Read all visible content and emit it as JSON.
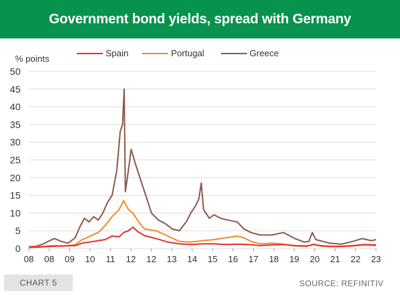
{
  "header": {
    "title": "Government bond yields, spread with Germany"
  },
  "footer": {
    "chart_tag": "CHART 5",
    "source": "SOURCE: REFINITIV"
  },
  "colors": {
    "spain": "#e03131",
    "portugal": "#f08c28",
    "greece": "#8b5a4a",
    "header_bg": "#07924f",
    "grid": "#dcdcdc"
  },
  "chart_data": {
    "type": "line",
    "title": "Government bond yields, spread with Germany",
    "ylabel": "% points",
    "xlabel": "",
    "ylim": [
      0,
      50
    ],
    "yticks": [
      0,
      5,
      10,
      15,
      20,
      25,
      30,
      35,
      40,
      45,
      50
    ],
    "xlim": [
      2008.0,
      2023.0
    ],
    "xtick_labels": [
      "08",
      "08",
      "09",
      "10",
      "11",
      "12",
      "12",
      "13",
      "14",
      "15",
      "16",
      "17",
      "18",
      "19",
      "20",
      "21",
      "22",
      "23"
    ],
    "legend_position": "top",
    "grid": true,
    "series": [
      {
        "name": "Spain",
        "color": "#e03131",
        "points": [
          [
            2008.0,
            0.3
          ],
          [
            2008.5,
            0.4
          ],
          [
            2009.0,
            0.6
          ],
          [
            2009.5,
            0.7
          ],
          [
            2010.0,
            0.8
          ],
          [
            2010.3,
            1.5
          ],
          [
            2010.5,
            1.7
          ],
          [
            2010.8,
            2.0
          ],
          [
            2011.0,
            2.2
          ],
          [
            2011.3,
            2.5
          ],
          [
            2011.6,
            3.5
          ],
          [
            2011.9,
            3.3
          ],
          [
            2012.1,
            4.5
          ],
          [
            2012.3,
            5.0
          ],
          [
            2012.5,
            6.0
          ],
          [
            2012.7,
            4.8
          ],
          [
            2013.0,
            3.6
          ],
          [
            2013.5,
            2.8
          ],
          [
            2014.0,
            1.8
          ],
          [
            2014.5,
            1.3
          ],
          [
            2015.0,
            1.1
          ],
          [
            2015.5,
            1.3
          ],
          [
            2016.0,
            1.3
          ],
          [
            2016.5,
            1.1
          ],
          [
            2017.0,
            1.2
          ],
          [
            2017.5,
            1.1
          ],
          [
            2018.0,
            0.8
          ],
          [
            2018.5,
            1.0
          ],
          [
            2019.0,
            1.1
          ],
          [
            2019.5,
            0.8
          ],
          [
            2020.0,
            0.7
          ],
          [
            2020.3,
            1.1
          ],
          [
            2020.6,
            0.8
          ],
          [
            2021.0,
            0.6
          ],
          [
            2021.5,
            0.6
          ],
          [
            2022.0,
            0.8
          ],
          [
            2022.5,
            1.1
          ],
          [
            2023.0,
            1.0
          ]
        ]
      },
      {
        "name": "Portugal",
        "color": "#f08c28",
        "points": [
          [
            2008.0,
            0.4
          ],
          [
            2008.5,
            0.5
          ],
          [
            2009.0,
            0.8
          ],
          [
            2009.5,
            0.7
          ],
          [
            2010.0,
            1.0
          ],
          [
            2010.3,
            2.5
          ],
          [
            2010.5,
            3.0
          ],
          [
            2010.8,
            4.0
          ],
          [
            2011.0,
            4.5
          ],
          [
            2011.3,
            6.5
          ],
          [
            2011.6,
            9.0
          ],
          [
            2011.9,
            11.0
          ],
          [
            2012.1,
            13.5
          ],
          [
            2012.3,
            11.0
          ],
          [
            2012.5,
            10.0
          ],
          [
            2012.8,
            7.0
          ],
          [
            2013.0,
            5.5
          ],
          [
            2013.5,
            5.0
          ],
          [
            2014.0,
            3.5
          ],
          [
            2014.5,
            2.0
          ],
          [
            2015.0,
            1.8
          ],
          [
            2015.5,
            2.2
          ],
          [
            2016.0,
            2.5
          ],
          [
            2016.5,
            3.0
          ],
          [
            2017.0,
            3.5
          ],
          [
            2017.3,
            3.0
          ],
          [
            2017.6,
            2.0
          ],
          [
            2018.0,
            1.3
          ],
          [
            2018.5,
            1.5
          ],
          [
            2019.0,
            1.2
          ],
          [
            2019.5,
            0.7
          ],
          [
            2020.0,
            0.6
          ],
          [
            2020.3,
            1.2
          ],
          [
            2020.6,
            0.7
          ],
          [
            2021.0,
            0.5
          ],
          [
            2021.5,
            0.5
          ],
          [
            2022.0,
            0.7
          ],
          [
            2022.5,
            1.0
          ],
          [
            2023.0,
            0.8
          ]
        ]
      },
      {
        "name": "Greece",
        "color": "#8b5a4a",
        "points": [
          [
            2008.0,
            0.5
          ],
          [
            2008.3,
            0.6
          ],
          [
            2008.6,
            1.2
          ],
          [
            2008.9,
            2.2
          ],
          [
            2009.1,
            2.8
          ],
          [
            2009.4,
            2.0
          ],
          [
            2009.7,
            1.5
          ],
          [
            2010.0,
            3.0
          ],
          [
            2010.2,
            6.0
          ],
          [
            2010.4,
            8.5
          ],
          [
            2010.6,
            7.5
          ],
          [
            2010.8,
            9.0
          ],
          [
            2011.0,
            8.0
          ],
          [
            2011.2,
            10.0
          ],
          [
            2011.4,
            13.0
          ],
          [
            2011.6,
            15.0
          ],
          [
            2011.8,
            22.0
          ],
          [
            2011.95,
            33.0
          ],
          [
            2012.05,
            35.0
          ],
          [
            2012.12,
            45.0
          ],
          [
            2012.17,
            16.0
          ],
          [
            2012.3,
            22.0
          ],
          [
            2012.42,
            28.0
          ],
          [
            2012.6,
            24.0
          ],
          [
            2012.8,
            20.0
          ],
          [
            2013.0,
            16.0
          ],
          [
            2013.3,
            10.0
          ],
          [
            2013.6,
            8.0
          ],
          [
            2013.9,
            7.0
          ],
          [
            2014.2,
            5.5
          ],
          [
            2014.5,
            5.0
          ],
          [
            2014.8,
            7.5
          ],
          [
            2015.0,
            10.0
          ],
          [
            2015.2,
            12.0
          ],
          [
            2015.35,
            14.0
          ],
          [
            2015.45,
            18.5
          ],
          [
            2015.55,
            11.0
          ],
          [
            2015.8,
            8.5
          ],
          [
            2016.0,
            9.5
          ],
          [
            2016.3,
            8.5
          ],
          [
            2016.6,
            8.0
          ],
          [
            2017.0,
            7.5
          ],
          [
            2017.3,
            5.5
          ],
          [
            2017.6,
            4.5
          ],
          [
            2018.0,
            3.8
          ],
          [
            2018.5,
            3.8
          ],
          [
            2019.0,
            4.5
          ],
          [
            2019.5,
            2.8
          ],
          [
            2019.9,
            1.8
          ],
          [
            2020.1,
            2.0
          ],
          [
            2020.25,
            4.5
          ],
          [
            2020.4,
            2.5
          ],
          [
            2020.7,
            2.0
          ],
          [
            2021.0,
            1.5
          ],
          [
            2021.5,
            1.2
          ],
          [
            2022.0,
            2.0
          ],
          [
            2022.4,
            2.8
          ],
          [
            2022.8,
            2.2
          ],
          [
            2023.0,
            2.5
          ]
        ]
      }
    ]
  }
}
